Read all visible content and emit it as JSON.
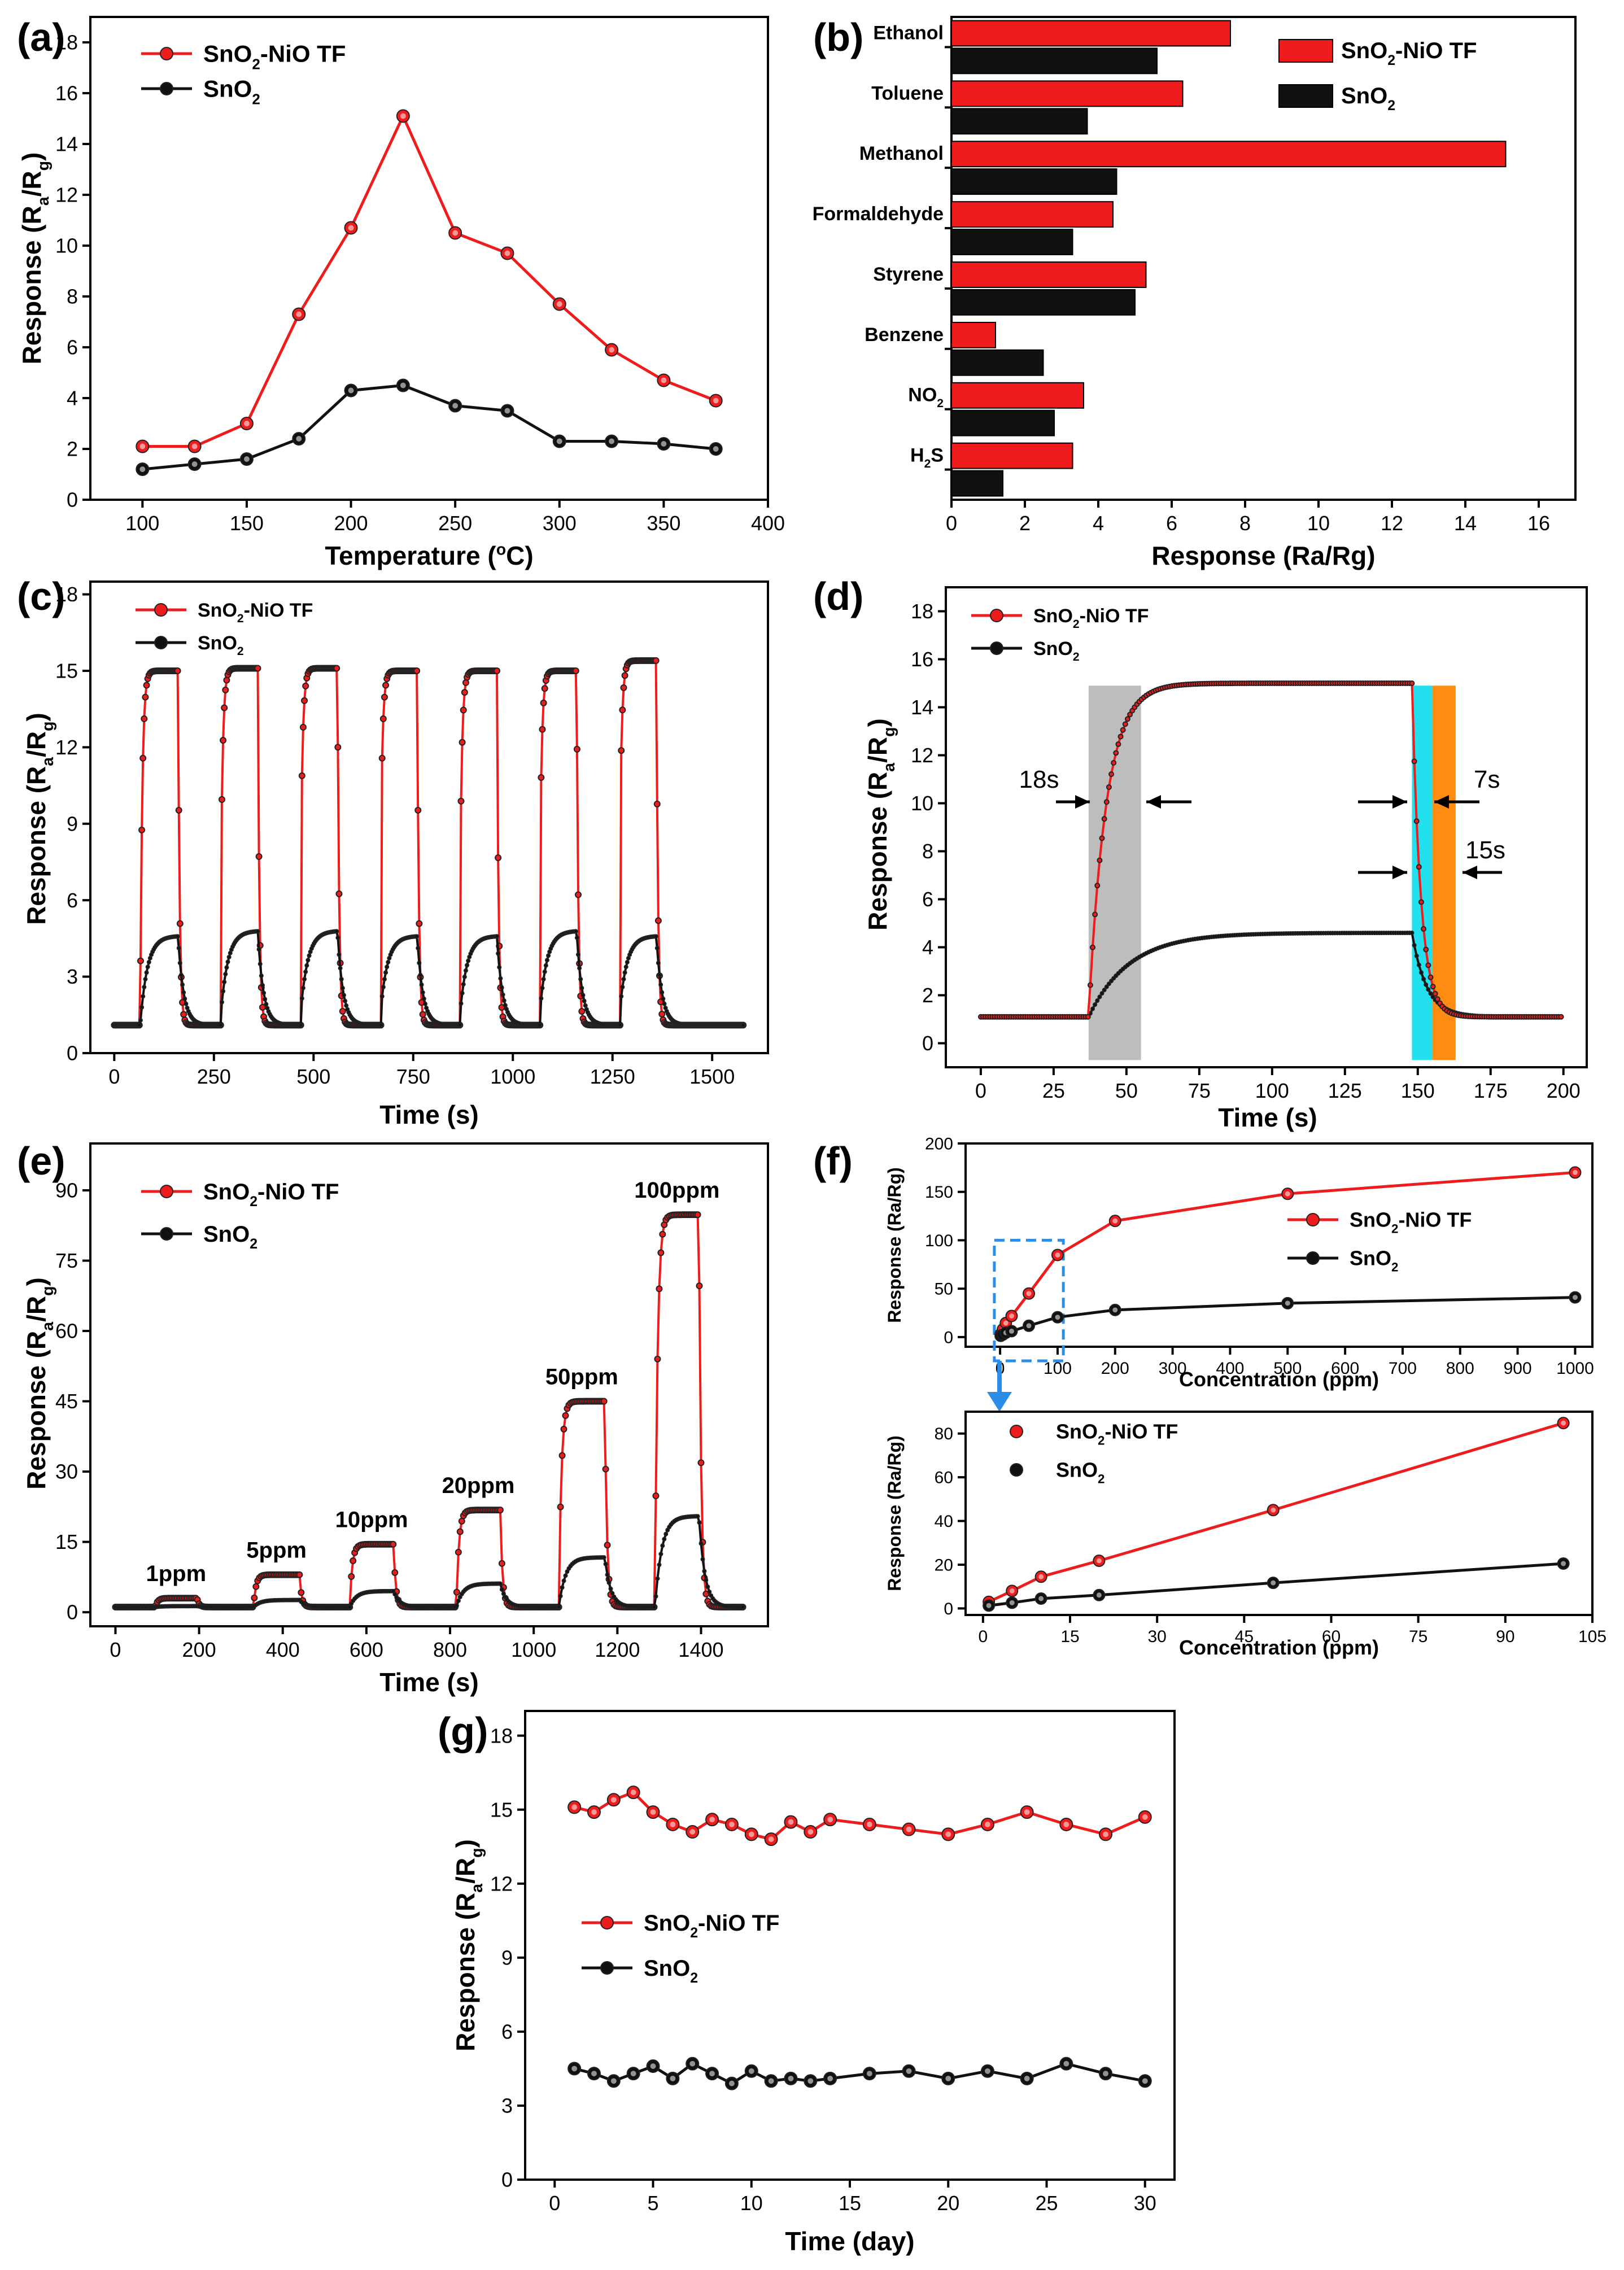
{
  "colors": {
    "red": "#ee1c1c",
    "black": "#111111",
    "gray_band": "#bdbdbd",
    "cyan_band": "#22e0ee",
    "orange_band": "#ff8c10",
    "blue_box": "#2a8ee8"
  },
  "chart_data": [
    {
      "id": "a",
      "panel_label": "(a)",
      "type": "line",
      "xlabel": "Temperature (°C)",
      "ylabel": "Response (Ra/Rg)",
      "xlim": [
        75,
        400
      ],
      "ylim": [
        0,
        19
      ],
      "xticks": [
        100,
        150,
        200,
        250,
        300,
        350,
        400
      ],
      "yticks": [
        0,
        2,
        4,
        6,
        8,
        10,
        12,
        14,
        16,
        18
      ],
      "x": [
        100,
        125,
        150,
        175,
        200,
        225,
        250,
        275,
        300,
        325,
        350,
        375
      ],
      "series": [
        {
          "name": "SnO2-NiO TF",
          "color": "#ee1c1c",
          "values": [
            2.1,
            2.1,
            3.0,
            7.3,
            10.7,
            15.1,
            10.5,
            9.7,
            7.7,
            5.9,
            4.7,
            3.9
          ]
        },
        {
          "name": "SnO2",
          "color": "#111111",
          "values": [
            1.2,
            1.4,
            1.6,
            2.4,
            4.3,
            4.5,
            3.7,
            3.5,
            2.3,
            2.3,
            2.2,
            2.0
          ]
        }
      ],
      "legend": "top-left"
    },
    {
      "id": "b",
      "panel_label": "(b)",
      "type": "bar",
      "orientation": "horizontal",
      "xlabel": "Response (Ra/Rg)",
      "ylabel": "",
      "xlim": [
        0,
        17
      ],
      "xticks": [
        0,
        2,
        4,
        6,
        8,
        10,
        12,
        14,
        16
      ],
      "categories": [
        "Ethanol",
        "Toluene",
        "Methanol",
        "Formaldehyde",
        "Styrene",
        "Benzene",
        "NO2",
        "H2S"
      ],
      "series": [
        {
          "name": "SnO2-NiO TF",
          "color": "#ee1c1c",
          "values": [
            7.6,
            6.3,
            15.1,
            4.4,
            5.3,
            1.2,
            3.6,
            3.3
          ]
        },
        {
          "name": "SnO2",
          "color": "#111111",
          "values": [
            5.6,
            3.7,
            4.5,
            3.3,
            5.0,
            2.5,
            2.8,
            1.4
          ]
        }
      ],
      "legend": "top-right"
    },
    {
      "id": "c",
      "panel_label": "(c)",
      "type": "line",
      "xlabel": "Time (s)",
      "ylabel": "Response (Ra/Rg)",
      "xlim": [
        -60,
        1640
      ],
      "ylim": [
        0,
        18.5
      ],
      "xticks": [
        0,
        250,
        500,
        750,
        1000,
        1250,
        1500
      ],
      "yticks": [
        0,
        3,
        6,
        9,
        12,
        15,
        18
      ],
      "cycles": {
        "starts": [
          65,
          265,
          465,
          665,
          865,
          1065,
          1265
        ],
        "duration": 95,
        "baseline": 1.1,
        "peaks_sno2_nio": [
          15.0,
          15.1,
          15.1,
          15.0,
          15.0,
          15.0,
          15.4
        ],
        "peaks_sno2": [
          4.6,
          4.8,
          4.8,
          4.6,
          4.6,
          4.8,
          4.6
        ]
      },
      "series": [
        {
          "name": "SnO2-NiO TF",
          "color": "#ee1c1c"
        },
        {
          "name": "SnO2",
          "color": "#111111"
        }
      ],
      "legend": "top-left"
    },
    {
      "id": "d",
      "panel_label": "(d)",
      "type": "line",
      "xlabel": "Time (s)",
      "ylabel": "Response (Ra/Rg)",
      "xlim": [
        -12,
        208
      ],
      "ylim": [
        -1,
        19
      ],
      "xticks": [
        0,
        25,
        50,
        75,
        100,
        125,
        150,
        175,
        200
      ],
      "yticks": [
        0,
        2,
        4,
        6,
        8,
        10,
        12,
        14,
        16,
        18
      ],
      "gas_on": 37,
      "gas_off": 148,
      "peaks": {
        "SnO2-NiO TF": 15.0,
        "SnO2": 4.6
      },
      "baseline": 1.1,
      "bands": [
        {
          "from": 37,
          "to": 55,
          "color": "#bdbdbd"
        },
        {
          "from": 148,
          "to": 155,
          "color": "#22e0ee"
        },
        {
          "from": 155,
          "to": 163,
          "color": "#ff8c10"
        }
      ],
      "annotations": [
        "18s",
        "7s",
        "15s"
      ],
      "series": [
        {
          "name": "SnO2-NiO TF",
          "color": "#ee1c1c"
        },
        {
          "name": "SnO2",
          "color": "#111111"
        }
      ],
      "legend": "top-left"
    },
    {
      "id": "e",
      "panel_label": "(e)",
      "type": "line",
      "xlabel": "Time (s)",
      "ylabel": "Response (Ra/Rg)",
      "xlim": [
        -60,
        1560
      ],
      "ylim": [
        -3,
        100
      ],
      "xticks": [
        0,
        200,
        400,
        600,
        800,
        1000,
        1200,
        1400
      ],
      "yticks": [
        0,
        15,
        30,
        45,
        60,
        75,
        90
      ],
      "steps": [
        {
          "label": "1ppm",
          "start": 95,
          "end": 195,
          "nio": 3.0,
          "sno2": 1.3
        },
        {
          "label": "5ppm",
          "start": 330,
          "end": 440,
          "nio": 8.0,
          "sno2": 2.6
        },
        {
          "label": "10ppm",
          "start": 560,
          "end": 665,
          "nio": 14.5,
          "sno2": 4.5
        },
        {
          "label": "20ppm",
          "start": 815,
          "end": 920,
          "nio": 21.8,
          "sno2": 6.1
        },
        {
          "label": "50ppm",
          "start": 1060,
          "end": 1170,
          "nio": 45.0,
          "sno2": 11.7
        },
        {
          "label": "100ppm",
          "start": 1290,
          "end": 1395,
          "nio": 84.8,
          "sno2": 20.5
        }
      ],
      "baseline": 1.1,
      "series": [
        {
          "name": "SnO2-NiO TF",
          "color": "#ee1c1c"
        },
        {
          "name": "SnO2",
          "color": "#111111"
        }
      ],
      "legend": "top-left"
    },
    {
      "id": "f1",
      "panel_label": "(f)",
      "type": "line",
      "xlabel": "Concentration (ppm)",
      "ylabel": "Response (Ra/Rg)",
      "xlim": [
        -60,
        1030
      ],
      "ylim": [
        -10,
        200
      ],
      "xticks": [
        0,
        100,
        200,
        300,
        400,
        500,
        600,
        700,
        800,
        900,
        1000
      ],
      "yticks": [
        0,
        50,
        100,
        150,
        200
      ],
      "x": [
        1,
        5,
        10,
        20,
        50,
        100,
        200,
        500,
        1000
      ],
      "series": [
        {
          "name": "SnO2-NiO TF",
          "color": "#ee1c1c",
          "values": [
            3.0,
            8.0,
            14.5,
            21.8,
            45.0,
            84.8,
            120,
            148,
            170
          ]
        },
        {
          "name": "SnO2",
          "color": "#111111",
          "values": [
            1.3,
            2.6,
            4.5,
            6.1,
            11.7,
            20.5,
            28,
            35,
            41
          ]
        }
      ],
      "zoom_box": {
        "x": [
          -10,
          110
        ],
        "y": [
          -10,
          100
        ]
      },
      "legend": "right"
    },
    {
      "id": "f2",
      "type": "line",
      "xlabel": "Concentration (ppm)",
      "ylabel": "Response (Ra/Rg)",
      "xlim": [
        -3,
        105
      ],
      "ylim": [
        -3,
        90
      ],
      "xticks": [
        0,
        15,
        30,
        45,
        60,
        75,
        90,
        105
      ],
      "yticks": [
        0,
        20,
        40,
        60,
        80
      ],
      "x": [
        1,
        5,
        10,
        20,
        50,
        100
      ],
      "series": [
        {
          "name": "SnO2-NiO TF",
          "color": "#ee1c1c",
          "values": [
            3.0,
            8.0,
            14.5,
            21.8,
            45.0,
            84.8
          ]
        },
        {
          "name": "SnO2",
          "color": "#111111",
          "values": [
            1.3,
            2.6,
            4.5,
            6.1,
            11.7,
            20.5
          ]
        }
      ],
      "legend": "top-left"
    },
    {
      "id": "g",
      "panel_label": "(g)",
      "type": "line",
      "xlabel": "Time (day)",
      "ylabel": "Response (Ra/Rg)",
      "xlim": [
        -1.5,
        31.5
      ],
      "ylim": [
        0,
        19
      ],
      "xticks": [
        0,
        5,
        10,
        15,
        20,
        25,
        30
      ],
      "yticks": [
        0,
        3,
        6,
        9,
        12,
        15,
        18
      ],
      "x": [
        1,
        2,
        3,
        4,
        5,
        6,
        7,
        8,
        9,
        10,
        11,
        12,
        13,
        14,
        16,
        18,
        20,
        22,
        24,
        26,
        28,
        30
      ],
      "series": [
        {
          "name": "SnO2-NiO TF",
          "color": "#ee1c1c",
          "values": [
            15.1,
            14.9,
            15.4,
            15.7,
            14.9,
            14.4,
            14.1,
            14.6,
            14.4,
            14.0,
            13.8,
            14.5,
            14.1,
            14.6,
            14.4,
            14.2,
            14.0,
            14.4,
            14.9,
            14.4,
            14.0,
            14.7
          ]
        },
        {
          "name": "SnO2",
          "color": "#111111",
          "values": [
            4.5,
            4.3,
            4.0,
            4.3,
            4.6,
            4.1,
            4.7,
            4.3,
            3.9,
            4.4,
            4.0,
            4.1,
            4.0,
            4.1,
            4.3,
            4.4,
            4.1,
            4.4,
            4.1,
            4.7,
            4.3,
            4.0
          ]
        }
      ],
      "legend": "middle-left"
    }
  ]
}
